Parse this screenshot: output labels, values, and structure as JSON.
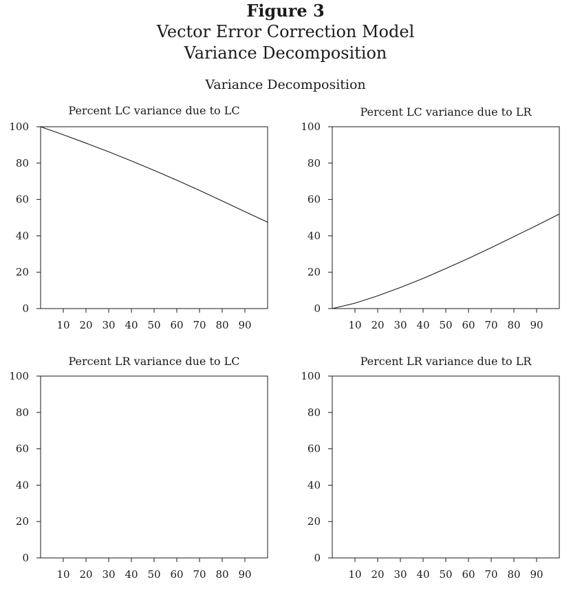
{
  "figure": {
    "title_lines": [
      "Figure 3",
      "Vector Error Correction Model",
      "Variance Decomposition"
    ],
    "subtitle": "Variance Decomposition"
  },
  "chart_data": [
    {
      "type": "line",
      "title": "Percent LC variance due to LC",
      "xlabel": "",
      "ylabel": "",
      "xlim": [
        0,
        100
      ],
      "ylim": [
        0,
        100
      ],
      "x_ticks": [
        10,
        20,
        30,
        40,
        50,
        60,
        70,
        80,
        90
      ],
      "y_ticks": [
        0,
        20,
        40,
        60,
        80,
        100
      ],
      "grid": false,
      "series": [
        {
          "x": [
            0,
            10,
            20,
            30,
            40,
            50,
            60,
            70,
            80,
            90,
            100
          ],
          "y": [
            100,
            95.6,
            91,
            86.2,
            81.2,
            76,
            70.6,
            65,
            59.2,
            53.3,
            47.5
          ]
        }
      ]
    },
    {
      "type": "line",
      "title": "Percent LC variance due to LR",
      "xlabel": "",
      "ylabel": "",
      "xlim": [
        0,
        100
      ],
      "ylim": [
        0,
        100
      ],
      "x_ticks": [
        10,
        20,
        30,
        40,
        50,
        60,
        70,
        80,
        90
      ],
      "y_ticks": [
        0,
        20,
        40,
        60,
        80,
        100
      ],
      "grid": false,
      "series": [
        {
          "x": [
            0,
            10,
            20,
            30,
            40,
            50,
            60,
            70,
            80,
            90,
            100
          ],
          "y": [
            0,
            3,
            7,
            11.6,
            16.6,
            22,
            27.6,
            33.5,
            39.6,
            45.7,
            52
          ]
        }
      ]
    },
    {
      "type": "line",
      "title": "Percent LR variance due to LC",
      "xlabel": "",
      "ylabel": "",
      "xlim": [
        0,
        100
      ],
      "ylim": [
        0,
        100
      ],
      "x_ticks": [
        10,
        20,
        30,
        40,
        50,
        60,
        70,
        80,
        90
      ],
      "y_ticks": [
        0,
        20,
        40,
        60,
        80,
        100
      ],
      "grid": false,
      "series": []
    },
    {
      "type": "line",
      "title": "Percent LR variance due to LR",
      "xlabel": "",
      "ylabel": "",
      "xlim": [
        0,
        100
      ],
      "ylim": [
        0,
        100
      ],
      "x_ticks": [
        10,
        20,
        30,
        40,
        50,
        60,
        70,
        80,
        90
      ],
      "y_ticks": [
        0,
        20,
        40,
        60,
        80,
        100
      ],
      "grid": false,
      "series": []
    }
  ]
}
